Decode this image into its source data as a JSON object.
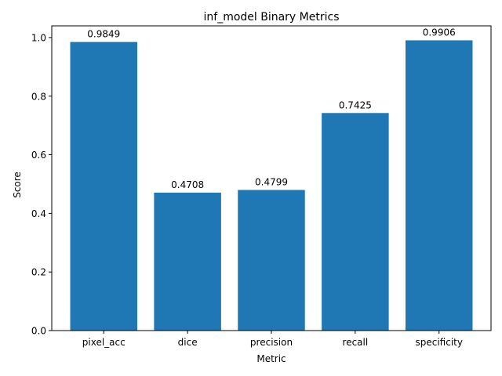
{
  "chart_data": {
    "type": "bar",
    "title": "inf_model Binary Metrics",
    "xlabel": "Metric",
    "ylabel": "Score",
    "categories": [
      "pixel_acc",
      "dice",
      "precision",
      "recall",
      "specificity"
    ],
    "values": [
      0.9849,
      0.4708,
      0.4799,
      0.7425,
      0.9906
    ],
    "data_labels": [
      "0.9849",
      "0.4708",
      "0.4799",
      "0.7425",
      "0.9906"
    ],
    "ylim": [
      0,
      1.04
    ],
    "yticks": [
      0.0,
      0.2,
      0.4,
      0.6,
      0.8,
      1.0
    ],
    "ytick_labels": [
      "0.0",
      "0.2",
      "0.4",
      "0.6",
      "0.8",
      "1.0"
    ],
    "bar_color": "#1f77b4",
    "grid": false,
    "legend": "none"
  }
}
